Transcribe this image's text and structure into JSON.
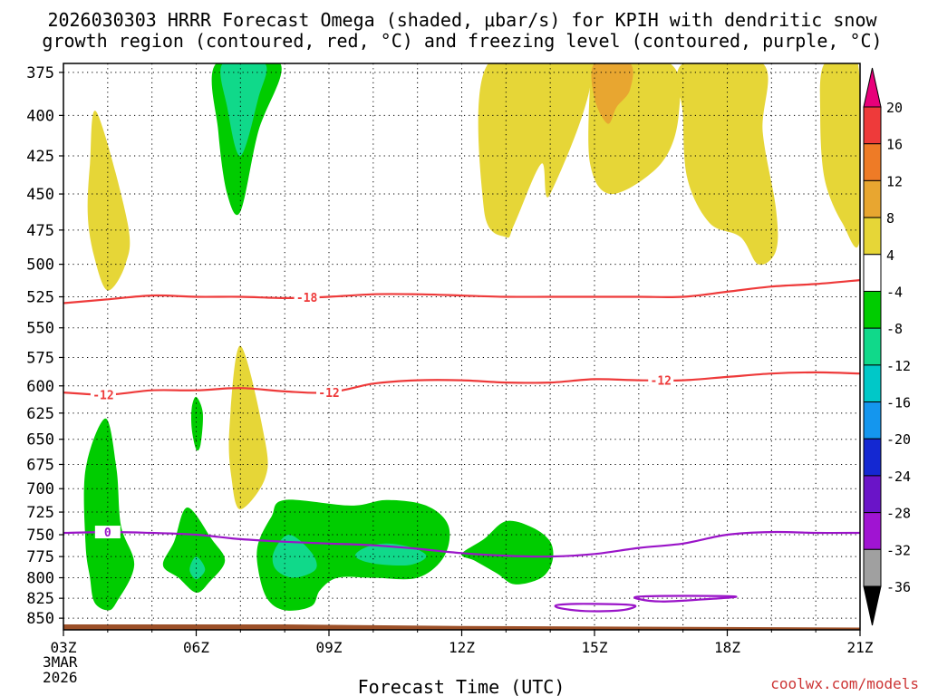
{
  "title_line1": "2026030303 HRRR Forecast Omega (shaded, μbar/s) for KPIH with dendritic snow",
  "title_line2": "growth region (contoured, red, °C) and freezing level (contoured, purple, °C)",
  "credit": "coolwx.com/models",
  "chart_data": {
    "type": "contour",
    "xlabel": "Forecast Time (UTC)",
    "x_ticks": [
      "03Z",
      "06Z",
      "09Z",
      "12Z",
      "15Z",
      "18Z",
      "21Z"
    ],
    "x_start_label": [
      "3MAR",
      "2026"
    ],
    "x_range_hours_utc": [
      3,
      21
    ],
    "y_ticks": [
      375,
      400,
      425,
      450,
      475,
      500,
      525,
      550,
      575,
      600,
      625,
      650,
      675,
      700,
      725,
      750,
      775,
      800,
      825,
      850
    ],
    "y_range_mb": [
      370,
      865
    ],
    "y_scale": "log-pressure",
    "grid": true,
    "colorbar": {
      "labels": [
        "20",
        "16",
        "12",
        "8",
        "4",
        "-4",
        "-8",
        "-12",
        "-16",
        "-20",
        "-24",
        "-28",
        "-32",
        "-36"
      ],
      "colors": [
        "#e8007a",
        "#ee3a3a",
        "#ee7b26",
        "#e8a630",
        "#e6d637",
        "#ffffff",
        "#00cc00",
        "#10d98a",
        "#00c8c8",
        "#1496ee",
        "#1428d2",
        "#6a14c8",
        "#a014d2",
        "#a0a0a0",
        "#000000"
      ]
    },
    "contours": [
      {
        "name": "dendritic-minus-18",
        "label": "-18",
        "color": "#ee3a3a",
        "points": [
          [
            3,
            530
          ],
          [
            4,
            527
          ],
          [
            5,
            524
          ],
          [
            6,
            525
          ],
          [
            7,
            525
          ],
          [
            8,
            526
          ],
          [
            9,
            525
          ],
          [
            10,
            523
          ],
          [
            11,
            523
          ],
          [
            12,
            524
          ],
          [
            13,
            525
          ],
          [
            14,
            525
          ],
          [
            15,
            525
          ],
          [
            16,
            525
          ],
          [
            17,
            525
          ],
          [
            18,
            521
          ],
          [
            19,
            517
          ],
          [
            20,
            515
          ],
          [
            21,
            512
          ]
        ]
      },
      {
        "name": "dendritic-minus-12",
        "label": "-12",
        "color": "#ee3a3a",
        "points": [
          [
            3,
            606
          ],
          [
            4,
            608
          ],
          [
            5,
            604
          ],
          [
            6,
            604
          ],
          [
            7,
            602
          ],
          [
            8,
            605
          ],
          [
            9,
            606
          ],
          [
            10,
            598
          ],
          [
            11,
            595
          ],
          [
            12,
            595
          ],
          [
            13,
            597
          ],
          [
            14,
            597
          ],
          [
            15,
            594
          ],
          [
            16,
            595
          ],
          [
            17,
            595
          ],
          [
            18,
            592
          ],
          [
            19,
            589
          ],
          [
            20,
            588
          ],
          [
            21,
            589
          ]
        ]
      },
      {
        "name": "freezing-level-0",
        "label": "0",
        "color": "#9a14c8",
        "points": [
          [
            3,
            748
          ],
          [
            4,
            747
          ],
          [
            5,
            748
          ],
          [
            6,
            750
          ],
          [
            7,
            755
          ],
          [
            8,
            758
          ],
          [
            9,
            760
          ],
          [
            10,
            762
          ],
          [
            11,
            766
          ],
          [
            12,
            771
          ],
          [
            13,
            774
          ],
          [
            14,
            775
          ],
          [
            15,
            772
          ],
          [
            16,
            765
          ],
          [
            17,
            760
          ],
          [
            18,
            750
          ],
          [
            19,
            747
          ],
          [
            20,
            748
          ],
          [
            21,
            748
          ]
        ]
      },
      {
        "name": "freezing-level-closed-1",
        "label": "",
        "color": "#9a14c8",
        "points": [
          [
            14.2,
            833
          ],
          [
            15,
            832
          ],
          [
            15.9,
            834
          ],
          [
            15.6,
            840
          ],
          [
            14.8,
            841
          ],
          [
            14.2,
            837
          ],
          [
            14.2,
            833
          ]
        ]
      },
      {
        "name": "freezing-level-closed-2",
        "label": "",
        "color": "#9a14c8",
        "points": [
          [
            16,
            823
          ],
          [
            17,
            822
          ],
          [
            18.2,
            823
          ],
          [
            17.3,
            827
          ],
          [
            16.5,
            829
          ],
          [
            16,
            826
          ],
          [
            16,
            823
          ]
        ]
      }
    ],
    "shaded": [
      {
        "name": "omega-pos-a",
        "value_range": [
          4,
          8
        ],
        "color": "#e6d637",
        "points": [
          [
            3.75,
            398
          ],
          [
            4.45,
            470
          ],
          [
            4.4,
            500
          ],
          [
            4.0,
            520
          ],
          [
            3.7,
            495
          ],
          [
            3.55,
            465
          ],
          [
            3.6,
            430
          ],
          [
            3.75,
            398
          ]
        ]
      },
      {
        "name": "omega-pos-b",
        "value_range": [
          4,
          8
        ],
        "color": "#e6d637",
        "points": [
          [
            7.0,
            565
          ],
          [
            7.55,
            650
          ],
          [
            7.55,
            690
          ],
          [
            7.0,
            722
          ],
          [
            6.8,
            690
          ],
          [
            6.75,
            640
          ],
          [
            7.0,
            565
          ]
        ]
      },
      {
        "name": "omega-pos-c",
        "value_range": [
          4,
          8
        ],
        "color": "#e6d637",
        "points": [
          [
            12.6,
            370
          ],
          [
            14.9,
            370
          ],
          [
            14.0,
            450
          ],
          [
            13.8,
            430
          ],
          [
            13.2,
            470
          ],
          [
            13.0,
            480
          ],
          [
            12.5,
            460
          ],
          [
            12.6,
            370
          ]
        ]
      },
      {
        "name": "omega-pos-d",
        "value_range": [
          4,
          8
        ],
        "color": "#e6d637",
        "points": [
          [
            14.95,
            370
          ],
          [
            16.7,
            370
          ],
          [
            16.9,
            400
          ],
          [
            16.5,
            430
          ],
          [
            15.4,
            450
          ],
          [
            14.9,
            430
          ],
          [
            14.9,
            380
          ],
          [
            14.95,
            370
          ]
        ]
      },
      {
        "name": "omega-pos-e",
        "value_range": [
          4,
          8
        ],
        "color": "#e6d637",
        "points": [
          [
            17.0,
            370
          ],
          [
            18.8,
            370
          ],
          [
            18.8,
            410
          ],
          [
            19.1,
            460
          ],
          [
            19.1,
            490
          ],
          [
            18.7,
            500
          ],
          [
            18.3,
            480
          ],
          [
            17.6,
            470
          ],
          [
            17.1,
            440
          ],
          [
            17.0,
            400
          ],
          [
            17.0,
            370
          ]
        ]
      },
      {
        "name": "omega-pos-f",
        "value_range": [
          4,
          8
        ],
        "color": "#e6d637",
        "points": [
          [
            20.2,
            370
          ],
          [
            20.95,
            370
          ],
          [
            21.0,
            480
          ],
          [
            20.6,
            470
          ],
          [
            20.2,
            440
          ],
          [
            20.1,
            400
          ],
          [
            20.2,
            370
          ]
        ]
      },
      {
        "name": "omega-pos-g",
        "value_range": [
          8,
          12
        ],
        "color": "#e8a630",
        "points": [
          [
            15.0,
            370
          ],
          [
            15.8,
            370
          ],
          [
            15.8,
            385
          ],
          [
            15.5,
            395
          ],
          [
            15.3,
            405
          ],
          [
            15.0,
            390
          ],
          [
            15.0,
            370
          ]
        ]
      },
      {
        "name": "omega-neg-a",
        "value_range": [
          -8,
          -4
        ],
        "color": "#00cc00",
        "points": [
          [
            6.45,
            370
          ],
          [
            7.9,
            370
          ],
          [
            7.4,
            410
          ],
          [
            7.0,
            462
          ],
          [
            6.7,
            450
          ],
          [
            6.5,
            410
          ],
          [
            6.45,
            370
          ]
        ]
      },
      {
        "name": "omega-neg-b",
        "value_range": [
          -8,
          -4
        ],
        "color": "#00cc00",
        "points": [
          [
            6.0,
            610
          ],
          [
            6.15,
            625
          ],
          [
            6.1,
            655
          ],
          [
            6.0,
            660
          ],
          [
            5.9,
            640
          ],
          [
            5.9,
            620
          ],
          [
            6.0,
            610
          ]
        ]
      },
      {
        "name": "omega-neg-c",
        "value_range": [
          -8,
          -4
        ],
        "color": "#00cc00",
        "points": [
          [
            3.95,
            630
          ],
          [
            4.2,
            680
          ],
          [
            4.3,
            740
          ],
          [
            4.6,
            785
          ],
          [
            4.2,
            830
          ],
          [
            4.0,
            840
          ],
          [
            3.7,
            830
          ],
          [
            3.6,
            800
          ],
          [
            3.5,
            760
          ],
          [
            3.5,
            680
          ],
          [
            3.95,
            630
          ]
        ]
      },
      {
        "name": "omega-neg-d",
        "value_range": [
          -8,
          -4
        ],
        "color": "#00cc00",
        "points": [
          [
            5.8,
            720
          ],
          [
            6.35,
            755
          ],
          [
            6.65,
            780
          ],
          [
            6.3,
            805
          ],
          [
            6.0,
            818
          ],
          [
            5.6,
            800
          ],
          [
            5.25,
            785
          ],
          [
            5.5,
            758
          ],
          [
            5.8,
            720
          ]
        ]
      },
      {
        "name": "omega-neg-e",
        "value_range": [
          -8,
          -4
        ],
        "color": "#00cc00",
        "points": [
          [
            8.0,
            712
          ],
          [
            9.5,
            718
          ],
          [
            10.3,
            712
          ],
          [
            11.2,
            718
          ],
          [
            11.7,
            740
          ],
          [
            11.6,
            775
          ],
          [
            11.0,
            800
          ],
          [
            10.0,
            800
          ],
          [
            9.2,
            800
          ],
          [
            8.8,
            815
          ],
          [
            8.6,
            835
          ],
          [
            8.0,
            840
          ],
          [
            7.6,
            825
          ],
          [
            7.4,
            790
          ],
          [
            7.4,
            760
          ],
          [
            7.7,
            730
          ],
          [
            8.0,
            712
          ]
        ]
      },
      {
        "name": "omega-neg-f",
        "value_range": [
          -8,
          -4
        ],
        "color": "#00cc00",
        "points": [
          [
            13.0,
            735
          ],
          [
            13.6,
            742
          ],
          [
            14.0,
            758
          ],
          [
            14.05,
            780
          ],
          [
            13.8,
            800
          ],
          [
            13.2,
            808
          ],
          [
            12.8,
            795
          ],
          [
            12.3,
            780
          ],
          [
            12.0,
            772
          ],
          [
            12.5,
            755
          ],
          [
            13.0,
            735
          ]
        ]
      },
      {
        "name": "omega-mid-a",
        "value_range": [
          -12,
          -8
        ],
        "color": "#10d98a",
        "points": [
          [
            6.6,
            370
          ],
          [
            7.55,
            370
          ],
          [
            7.4,
            390
          ],
          [
            7.0,
            425
          ],
          [
            6.7,
            395
          ],
          [
            6.6,
            370
          ]
        ]
      },
      {
        "name": "omega-mid-b",
        "value_range": [
          -12,
          -8
        ],
        "color": "#10d98a",
        "points": [
          [
            6.0,
            775
          ],
          [
            6.2,
            790
          ],
          [
            6.0,
            802
          ],
          [
            5.85,
            790
          ],
          [
            6.0,
            775
          ]
        ]
      },
      {
        "name": "omega-mid-c",
        "value_range": [
          -12,
          -8
        ],
        "color": "#10d98a",
        "points": [
          [
            8.1,
            750
          ],
          [
            8.6,
            770
          ],
          [
            8.7,
            790
          ],
          [
            8.2,
            800
          ],
          [
            7.8,
            790
          ],
          [
            7.75,
            770
          ],
          [
            8.1,
            750
          ]
        ]
      },
      {
        "name": "omega-mid-d",
        "value_range": [
          -12,
          -8
        ],
        "color": "#10d98a",
        "points": [
          [
            10.3,
            760
          ],
          [
            10.9,
            765
          ],
          [
            11.2,
            775
          ],
          [
            10.8,
            785
          ],
          [
            10.0,
            783
          ],
          [
            9.6,
            775
          ],
          [
            9.8,
            765
          ],
          [
            10.3,
            760
          ]
        ]
      }
    ],
    "terrain": {
      "name": "ground",
      "color": "#9c5028",
      "top_mb": [
        [
          3,
          858
        ],
        [
          8,
          858
        ],
        [
          12,
          860
        ],
        [
          21,
          862
        ]
      ]
    }
  }
}
